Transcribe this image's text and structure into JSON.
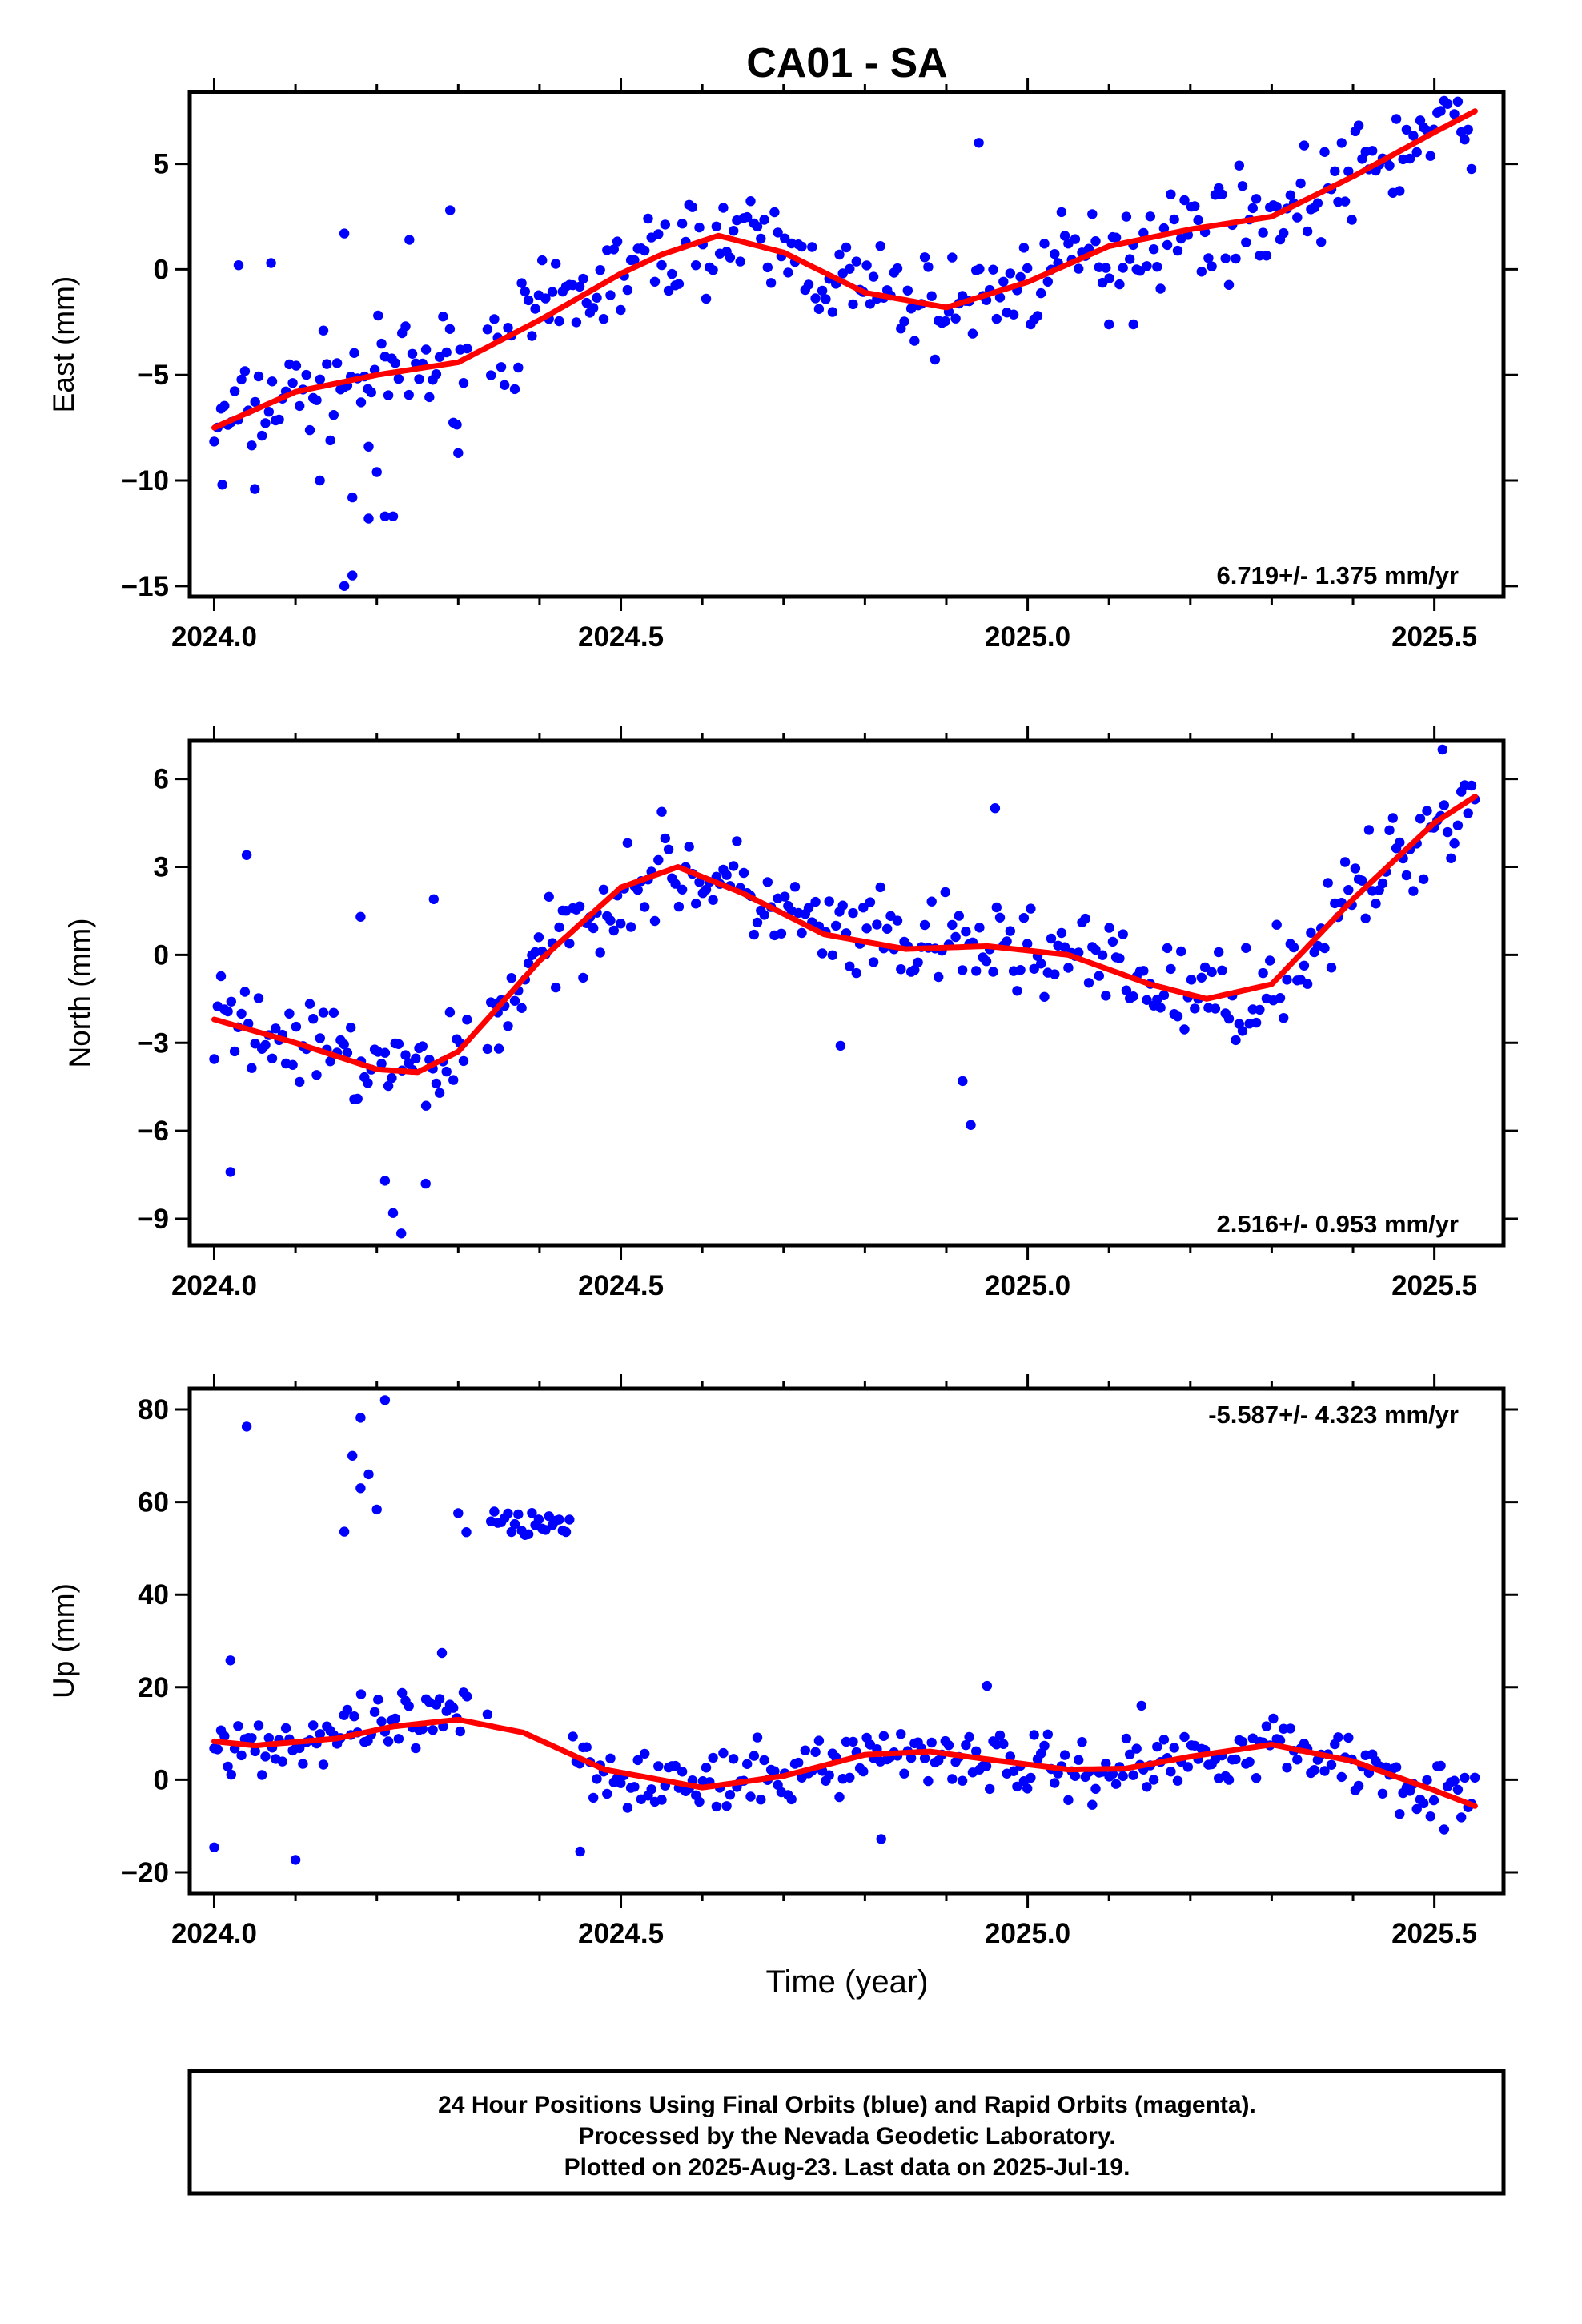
{
  "title": "CA01 - SA",
  "xlabel": "Time (year)",
  "footer": [
    "24 Hour Positions Using Final Orbits (blue) and Rapid Orbits (magenta).",
    "Processed by the Nevada Geodetic Laboratory.",
    "Plotted on 2025-Aug-23. Last data on 2025-Jul-19."
  ],
  "colors": {
    "points": "#0000ff",
    "fit": "#ff0000",
    "frame": "#000000"
  },
  "chart_data": [
    {
      "type": "scatter",
      "ylabel": "East (mm)",
      "rate_label": "6.719+/- 1.375 mm/yr",
      "xlim": [
        2023.97,
        2025.585
      ],
      "ylim": [
        -15.5,
        8.4
      ],
      "xticks": [
        2024.0,
        2024.5,
        2025.0,
        2025.5
      ],
      "xtick_labels": [
        "2024.0",
        "2024.5",
        "2025.0",
        "2025.5"
      ],
      "yticks": [
        5,
        0,
        -5,
        -10,
        -15
      ],
      "ytick_labels": [
        "5",
        "0",
        "−5",
        "−10",
        "−15"
      ],
      "fit_x": [
        2024.0,
        2024.1,
        2024.2,
        2024.3,
        2024.4,
        2024.5,
        2024.55,
        2024.62,
        2024.7,
        2024.8,
        2024.9,
        2025.0,
        2025.1,
        2025.2,
        2025.3,
        2025.4,
        2025.5,
        2025.55
      ],
      "fit_y": [
        -7.5,
        -5.8,
        -5.0,
        -4.4,
        -2.4,
        -0.2,
        0.7,
        1.6,
        0.8,
        -1.1,
        -1.8,
        -0.6,
        1.1,
        1.9,
        2.5,
        4.4,
        6.5,
        7.5
      ],
      "scatter_spread": 1.7,
      "outliers": [
        [
          2024.01,
          -10.2
        ],
        [
          2024.05,
          -10.4
        ],
        [
          2024.13,
          -10.0
        ],
        [
          2024.16,
          -15.0
        ],
        [
          2024.17,
          -14.5
        ],
        [
          2024.17,
          -10.8
        ],
        [
          2024.19,
          -11.8
        ],
        [
          2024.21,
          -11.7
        ],
        [
          2024.22,
          -11.7
        ],
        [
          2024.16,
          1.7
        ],
        [
          2024.24,
          1.4
        ],
        [
          2024.29,
          2.8
        ],
        [
          2024.03,
          0.2
        ],
        [
          2024.07,
          0.3
        ],
        [
          2024.94,
          6.0
        ],
        [
          2025.1,
          -2.6
        ],
        [
          2025.13,
          -2.6
        ],
        [
          2024.19,
          -8.4
        ],
        [
          2024.2,
          -9.6
        ],
        [
          2024.3,
          -8.7
        ]
      ]
    },
    {
      "type": "scatter",
      "ylabel": "North (mm)",
      "rate_label": "2.516+/- 0.953 mm/yr",
      "xlim": [
        2023.97,
        2025.585
      ],
      "ylim": [
        -9.9,
        7.3
      ],
      "xticks": [
        2024.0,
        2024.5,
        2025.0,
        2025.5
      ],
      "xtick_labels": [
        "2024.0",
        "2024.5",
        "2025.0",
        "2025.5"
      ],
      "yticks": [
        6,
        3,
        0,
        -3,
        -6,
        -9
      ],
      "ytick_labels": [
        "6",
        "3",
        "0",
        "−3",
        "−6",
        "−9"
      ],
      "fit_x": [
        2024.0,
        2024.1,
        2024.2,
        2024.25,
        2024.3,
        2024.4,
        2024.5,
        2024.57,
        2024.65,
        2024.75,
        2024.85,
        2024.95,
        2025.05,
        2025.15,
        2025.22,
        2025.3,
        2025.4,
        2025.5,
        2025.55
      ],
      "fit_y": [
        -2.2,
        -3.0,
        -3.9,
        -4.0,
        -3.3,
        -0.2,
        2.3,
        3.0,
        2.1,
        0.7,
        0.2,
        0.3,
        0.0,
        -1.0,
        -1.5,
        -1.0,
        1.9,
        4.5,
        5.4
      ],
      "scatter_spread": 1.2,
      "outliers": [
        [
          2024.04,
          3.4
        ],
        [
          2024.02,
          -7.4
        ],
        [
          2024.22,
          -8.8
        ],
        [
          2024.23,
          -9.5
        ],
        [
          2024.26,
          -7.8
        ],
        [
          2024.21,
          -7.7
        ],
        [
          2024.93,
          -5.8
        ],
        [
          2024.92,
          -4.3
        ],
        [
          2024.96,
          5.0
        ],
        [
          2025.51,
          7.0
        ],
        [
          2024.77,
          -3.1
        ],
        [
          2024.35,
          -3.2
        ],
        [
          2024.27,
          1.9
        ],
        [
          2024.18,
          1.3
        ]
      ]
    },
    {
      "type": "scatter",
      "ylabel": "Up (mm)",
      "rate_label": "-5.587+/- 4.323 mm/yr",
      "xlim": [
        2023.97,
        2025.585
      ],
      "ylim": [
        -24.5,
        84.5
      ],
      "xticks": [
        2024.0,
        2024.5,
        2025.0,
        2025.5
      ],
      "xtick_labels": [
        "2024.0",
        "2024.5",
        "2025.0",
        "2025.5"
      ],
      "yticks": [
        80,
        60,
        40,
        20,
        0,
        -20
      ],
      "ytick_labels": [
        "80",
        "60",
        "40",
        "20",
        "0",
        "−20"
      ],
      "fit_x": [
        2024.0,
        2024.05,
        2024.15,
        2024.22,
        2024.3,
        2024.38,
        2024.48,
        2024.6,
        2024.7,
        2024.8,
        2024.88,
        2024.96,
        2025.05,
        2025.12,
        2025.2,
        2025.3,
        2025.4,
        2025.5,
        2025.55
      ],
      "fit_y": [
        8.3,
        7.4,
        8.9,
        11.5,
        13.0,
        10.2,
        2.2,
        -1.7,
        0.8,
        5.4,
        6.1,
        4.2,
        2.2,
        2.4,
        5.0,
        7.6,
        4.0,
        -2.3,
        -5.7
      ],
      "scatter_spread": 5.0,
      "outliers": [
        [
          2024.04,
          76.3
        ],
        [
          2024.21,
          82.0
        ],
        [
          2024.18,
          78.2
        ],
        [
          2024.17,
          70.0
        ],
        [
          2024.19,
          66.0
        ],
        [
          2024.16,
          53.6
        ],
        [
          2024.18,
          63.0
        ],
        [
          2024.2,
          58.4
        ],
        [
          2024.3,
          57.6
        ],
        [
          2024.31,
          53.5
        ],
        [
          2024.02,
          25.8
        ],
        [
          2024.28,
          27.4
        ],
        [
          2024.1,
          -17.3
        ],
        [
          2024.82,
          -12.8
        ],
        [
          2024.95,
          20.3
        ],
        [
          2025.14,
          16.0
        ],
        [
          2024.45,
          -15.5
        ],
        [
          2024.0,
          -14.6
        ]
      ],
      "cluster": {
        "x_range": [
          2024.34,
          2024.44
        ],
        "y_center": 56.0,
        "y_spread": 3.5
      }
    }
  ]
}
